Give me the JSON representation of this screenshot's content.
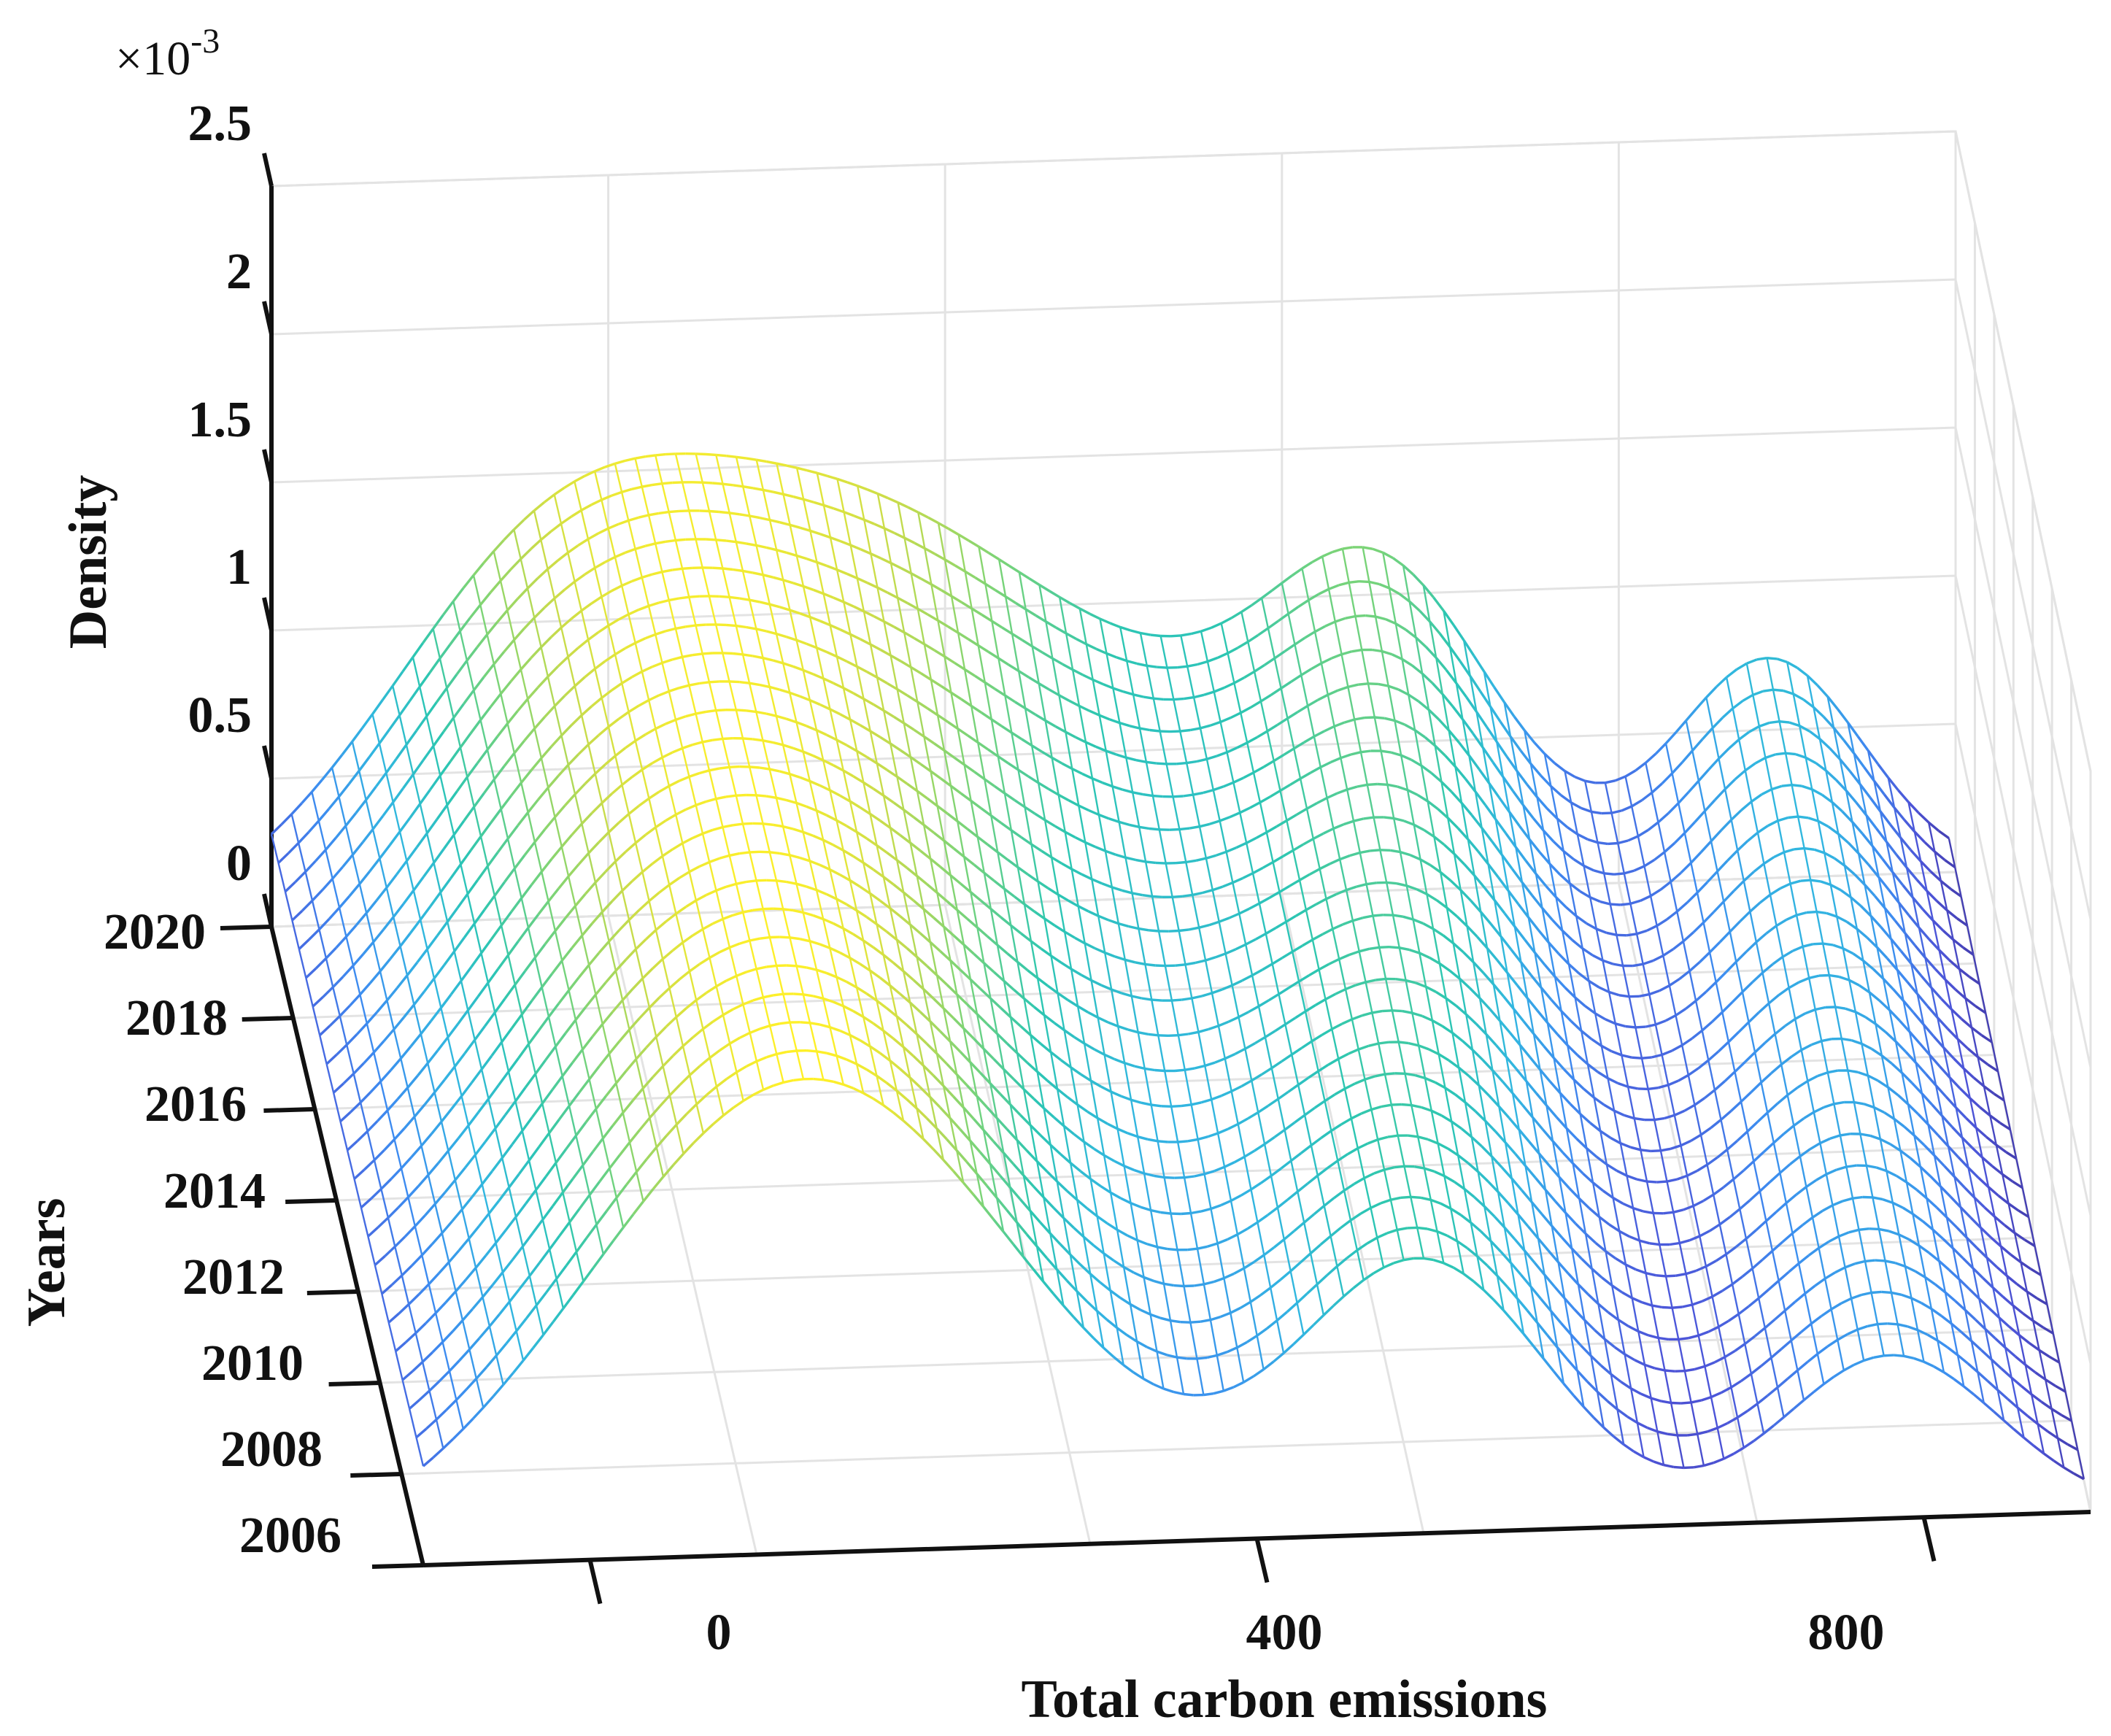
{
  "chart_data": {
    "type": "surface-3d",
    "title": "",
    "xlabel": "Total carbon emissions",
    "ylabel": "Years",
    "zlabel": "Density",
    "z_scale_label": "×10",
    "z_scale_exponent": "-3",
    "x_range": [
      -100,
      900
    ],
    "x_ticks": [
      0,
      400,
      800
    ],
    "x_tick_labels": [
      "0",
      "400",
      "800"
    ],
    "y_range": [
      2006,
      2020
    ],
    "y_ticks": [
      2006,
      2008,
      2010,
      2012,
      2014,
      2016,
      2018,
      2020
    ],
    "y_tick_labels": [
      "2006",
      "2008",
      "2010",
      "2012",
      "2014",
      "2016",
      "2018",
      "2020"
    ],
    "z_range": [
      0,
      2.5
    ],
    "z_ticks": [
      0,
      0.5,
      1,
      1.5,
      2,
      2.5
    ],
    "z_tick_labels": [
      "0",
      "0.5",
      "1",
      "1.5",
      "2",
      "2.5"
    ],
    "colormap": "parula-like",
    "colormap_stops": [
      "#3c2a8c",
      "#4c54d8",
      "#3d8cf0",
      "#31b6e0",
      "#2cc6b2",
      "#76d37a",
      "#c9dc4a",
      "#fff028"
    ],
    "density_components_2006": [
      {
        "center": 130,
        "amplitude": 1.6,
        "width": 130
      },
      {
        "center": 500,
        "amplitude": 0.9,
        "width": 75
      },
      {
        "center": 780,
        "amplitude": 0.55,
        "width": 65
      }
    ],
    "density_components_2020": [
      {
        "center": 60,
        "amplitude": 1.08,
        "width": 100
      },
      {
        "center": 230,
        "amplitude": 0.88,
        "width": 110
      },
      {
        "center": 400,
        "amplitude": 0.62,
        "width": 150
      },
      {
        "center": 560,
        "amplitude": 0.78,
        "width": 65
      },
      {
        "center": 790,
        "amplitude": 0.72,
        "width": 55
      }
    ]
  }
}
